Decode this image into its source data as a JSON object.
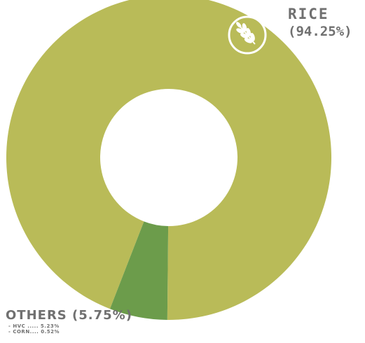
{
  "chart_data": {
    "type": "pie",
    "variant": "donut",
    "slices": [
      {
        "name": "RICE",
        "value": 94.25,
        "color": "#b9bb58"
      },
      {
        "name": "OTHERS",
        "value": 5.75,
        "color": "#6c9c4b"
      }
    ],
    "breakdown": [
      {
        "name": "HVC",
        "value": 5.23
      },
      {
        "name": "CORN",
        "value": 0.52
      }
    ]
  },
  "labels": {
    "rice_name": "RICE",
    "rice_pct": "(94.25%)",
    "others_head": "OTHERS (5.75%)",
    "others_items": [
      "- HVC ..... 5.23%",
      "- CORN.... 0.52%"
    ]
  },
  "icons": {
    "rice": "wheat-icon"
  },
  "colors": {
    "text": "#707070",
    "icon_bg": "#b9bb58"
  }
}
